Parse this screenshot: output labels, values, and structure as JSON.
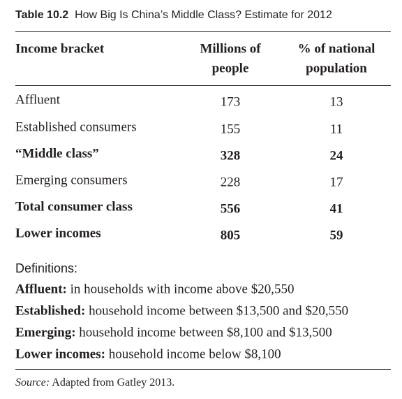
{
  "title": {
    "label": "Table 10.2",
    "text": "How Big Is China’s Middle Class? Estimate for 2012"
  },
  "table": {
    "columns": [
      [
        "Income bracket"
      ],
      [
        "Millions of",
        "people"
      ],
      [
        "% of national",
        "population"
      ]
    ],
    "rows": [
      {
        "cells": [
          "Affluent",
          "173",
          "13"
        ],
        "bold": false
      },
      {
        "cells": [
          "Established consumers",
          "155",
          "11"
        ],
        "bold": false
      },
      {
        "cells": [
          "“Middle class”",
          "328",
          "24"
        ],
        "bold": true
      },
      {
        "cells": [
          "Emerging consumers",
          "228",
          "17"
        ],
        "bold": false
      },
      {
        "cells": [
          "Total consumer class",
          "556",
          "41"
        ],
        "bold": true
      },
      {
        "cells": [
          "Lower incomes",
          "805",
          "59"
        ],
        "bold": true
      }
    ]
  },
  "definitions": {
    "label": "Definitions:",
    "items": [
      {
        "term": "Affluent:",
        "text": "in households with income above $20,550"
      },
      {
        "term": "Established:",
        "text": "household income between $13,500 and $20,550"
      },
      {
        "term": "Emerging:",
        "text": "household income between $8,100 and $13,500"
      },
      {
        "term": "Lower incomes:",
        "text": "household income below $8,100"
      }
    ]
  },
  "source": {
    "label": "Source:",
    "text": "Adapted from Gatley 2013."
  }
}
